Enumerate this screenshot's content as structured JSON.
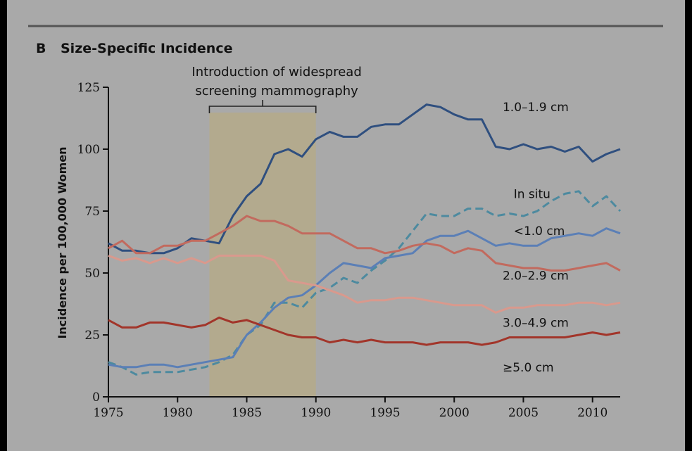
{
  "chart_data": {
    "type": "line",
    "panel_letter": "B",
    "title": "Size-Specific Incidence",
    "ylabel": "Incidence per 100,000 Women",
    "xlabel": "",
    "xlim": [
      1975,
      2012
    ],
    "ylim": [
      0,
      125
    ],
    "xticks": [
      1975,
      1980,
      1985,
      1990,
      1995,
      2000,
      2005,
      2010
    ],
    "yticks": [
      0,
      25,
      50,
      75,
      100,
      125
    ],
    "grid": false,
    "legend": "inline labels",
    "annotation": {
      "lines": [
        "Introduction of widespread",
        "screening mammography"
      ],
      "x_start": 1982.3,
      "x_end": 1990,
      "color": "#b3aa8e"
    },
    "x": [
      1975,
      1976,
      1977,
      1978,
      1979,
      1980,
      1981,
      1982,
      1983,
      1984,
      1985,
      1986,
      1987,
      1988,
      1989,
      1990,
      1991,
      1992,
      1993,
      1994,
      1995,
      1996,
      1997,
      1998,
      1999,
      2000,
      2001,
      2002,
      2003,
      2004,
      2005,
      2006,
      2007,
      2008,
      2009,
      2010,
      2011,
      2012
    ],
    "series": [
      {
        "name": "1.0–1.9 cm",
        "color": "#2f4f7f",
        "dashed": false,
        "label_x": 2003.5,
        "label_y": 117,
        "values": [
          62,
          59,
          59,
          58,
          58,
          60,
          64,
          63,
          62,
          73,
          81,
          86,
          98,
          100,
          97,
          104,
          107,
          105,
          105,
          109,
          110,
          110,
          114,
          118,
          117,
          114,
          112,
          112,
          101,
          100,
          102,
          100,
          101,
          99,
          101,
          95,
          98,
          100
        ]
      },
      {
        "name": "In situ",
        "color": "#4d8a9f",
        "dashed": true,
        "label_x": 2004.3,
        "label_y": 82,
        "values": [
          14,
          12,
          9,
          10,
          10,
          10,
          11,
          12,
          14,
          17,
          25,
          29,
          38,
          38,
          36,
          42,
          44,
          48,
          46,
          51,
          55,
          60,
          67,
          74,
          73,
          73,
          76,
          76,
          73,
          74,
          73,
          75,
          79,
          82,
          83,
          77,
          81,
          75
        ]
      },
      {
        "name": "<1.0 cm",
        "color": "#5b7fb6",
        "dashed": false,
        "label_x": 2004.3,
        "label_y": 67,
        "values": [
          13,
          12,
          12,
          13,
          13,
          12,
          13,
          14,
          15,
          16,
          25,
          30,
          36,
          40,
          41,
          45,
          50,
          54,
          53,
          52,
          56,
          57,
          58,
          63,
          65,
          65,
          67,
          64,
          61,
          62,
          61,
          61,
          64,
          65,
          66,
          65,
          68,
          66
        ]
      },
      {
        "name": "2.0–2.9 cm",
        "color": "#c26a5e",
        "dashed": false,
        "label_x": 2003.5,
        "label_y": 49,
        "values": [
          60,
          63,
          58,
          58,
          61,
          61,
          63,
          63,
          66,
          69,
          73,
          71,
          71,
          69,
          66,
          66,
          66,
          63,
          60,
          60,
          58,
          59,
          61,
          62,
          61,
          58,
          60,
          59,
          54,
          53,
          52,
          52,
          51,
          51,
          52,
          53,
          54,
          51
        ]
      },
      {
        "name": "3.0–4.9 cm",
        "color": "#d9998d",
        "dashed": false,
        "label_x": 2003.5,
        "label_y": 30,
        "values": [
          57,
          55,
          56,
          54,
          56,
          54,
          56,
          54,
          57,
          57,
          57,
          57,
          55,
          47,
          46,
          45,
          43,
          41,
          38,
          39,
          39,
          40,
          40,
          39,
          38,
          37,
          37,
          37,
          34,
          36,
          36,
          37,
          37,
          37,
          38,
          38,
          37,
          38
        ]
      },
      {
        "name": "≥5.0 cm",
        "color": "#a2352a",
        "dashed": false,
        "label_x": 2003.5,
        "label_y": 12,
        "values": [
          31,
          28,
          28,
          30,
          30,
          29,
          28,
          29,
          32,
          30,
          31,
          29,
          27,
          25,
          24,
          24,
          22,
          23,
          22,
          23,
          22,
          22,
          22,
          21,
          22,
          22,
          22,
          21,
          22,
          24,
          24,
          24,
          24,
          24,
          25,
          26,
          25,
          26
        ]
      }
    ]
  }
}
